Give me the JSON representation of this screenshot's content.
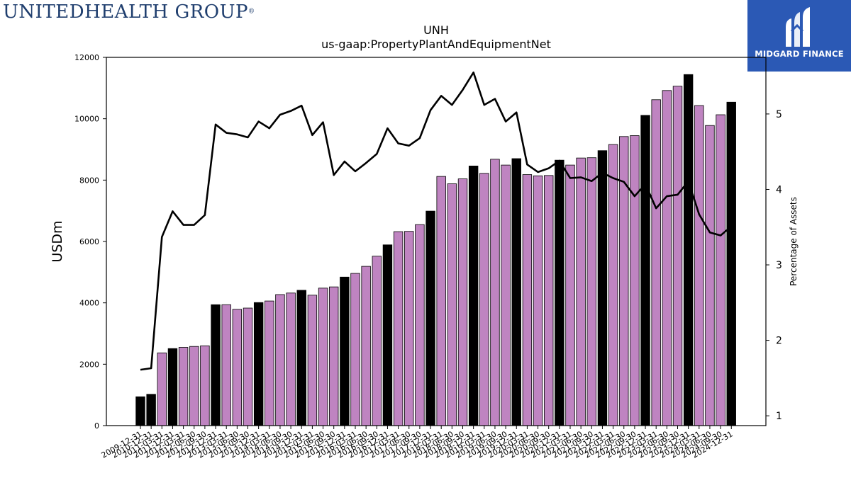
{
  "branding": {
    "left_logo_text": "UNITEDHEALTH GROUP",
    "left_logo_reg": "®",
    "right_logo_text": "MIDGARD FINANCE",
    "right_logo_bg": "#2b59b5"
  },
  "chart_data": {
    "type": "bar",
    "title": "UNH",
    "subtitle": "us-gaap:PropertyPlantAndEquipmentNet",
    "ylabel": "USDm",
    "y2label": "Percentage of Assets",
    "ylim": [
      0,
      12000
    ],
    "y2lim": [
      0.87,
      5.75
    ],
    "yticks": [
      0,
      2000,
      4000,
      6000,
      8000,
      10000,
      12000
    ],
    "y2ticks": [
      1,
      2,
      3,
      4,
      5
    ],
    "colors": {
      "annual": "#000000",
      "quarterly": "#bf84c1",
      "line": "#000000"
    },
    "categories": [
      "2009-12-31",
      "2010-12-31",
      "2011-03-31",
      "2011-12-31",
      "2012-03-31",
      "2012-06-30",
      "2012-09-30",
      "2012-12-31",
      "2013-03-31",
      "2013-06-30",
      "2013-09-30",
      "2013-12-31",
      "2014-03-31",
      "2014-06-30",
      "2014-09-30",
      "2014-12-31",
      "2015-03-31",
      "2015-06-30",
      "2015-09-30",
      "2015-12-31",
      "2016-03-31",
      "2016-06-30",
      "2016-09-30",
      "2016-12-31",
      "2017-03-31",
      "2017-06-30",
      "2017-09-30",
      "2017-12-31",
      "2018-03-31",
      "2018-06-30",
      "2018-09-30",
      "2018-12-31",
      "2019-03-31",
      "2019-06-30",
      "2019-09-30",
      "2019-12-31",
      "2020-03-31",
      "2020-06-30",
      "2020-09-30",
      "2020-12-31",
      "2021-03-31",
      "2021-06-30",
      "2021-09-30",
      "2021-12-31",
      "2022-03-31",
      "2022-06-30",
      "2022-09-30",
      "2022-12-31",
      "2023-03-31",
      "2023-06-30",
      "2023-09-30",
      "2023-12-31",
      "2024-03-31",
      "2024-06-30",
      "2024-09-30",
      "2024-12-31"
    ],
    "series": [
      {
        "name": "",
        "values": [
          940,
          1020,
          2370,
          2510,
          2550,
          2580,
          2600,
          3940,
          3940,
          3790,
          3830,
          4010,
          4060,
          4270,
          4320,
          4410,
          4250,
          4480,
          4520,
          4840,
          4960,
          5190,
          5520,
          5890,
          6320,
          6330,
          6550,
          6990,
          8120,
          7880,
          8040,
          8460,
          8220,
          8680,
          8490,
          8700,
          8180,
          8140,
          8150,
          8650,
          8490,
          8720,
          8730,
          8960,
          9160,
          9420,
          9450,
          10110,
          10620,
          10920,
          11060,
          11440,
          10430,
          9780,
          10130,
          10540
        ],
        "annual": [
          true,
          true,
          false,
          true,
          false,
          false,
          false,
          true,
          false,
          false,
          false,
          true,
          false,
          false,
          false,
          true,
          false,
          false,
          false,
          true,
          false,
          false,
          false,
          true,
          false,
          false,
          false,
          true,
          false,
          false,
          false,
          true,
          false,
          false,
          false,
          true,
          false,
          false,
          false,
          true,
          false,
          false,
          false,
          true,
          false,
          false,
          false,
          true,
          false,
          false,
          false,
          true,
          false,
          false,
          false,
          true
        ]
      },
      {
        "name": "",
        "axis": "right",
        "values": [
          1.61,
          1.63,
          3.37,
          3.71,
          3.53,
          3.53,
          3.66,
          4.86,
          4.75,
          4.73,
          4.69,
          4.9,
          4.81,
          4.99,
          5.04,
          5.11,
          4.72,
          4.89,
          4.19,
          4.37,
          4.24,
          4.35,
          4.47,
          4.81,
          4.61,
          4.58,
          4.68,
          5.05,
          5.24,
          5.12,
          5.32,
          5.55,
          5.12,
          5.2,
          4.9,
          5.02,
          4.33,
          4.23,
          4.28,
          4.38,
          4.15,
          4.16,
          4.11,
          4.22,
          4.15,
          4.1,
          3.91,
          4.07,
          3.75,
          3.91,
          3.93,
          4.11,
          3.67,
          3.43,
          3.39,
          3.51
        ]
      }
    ]
  }
}
